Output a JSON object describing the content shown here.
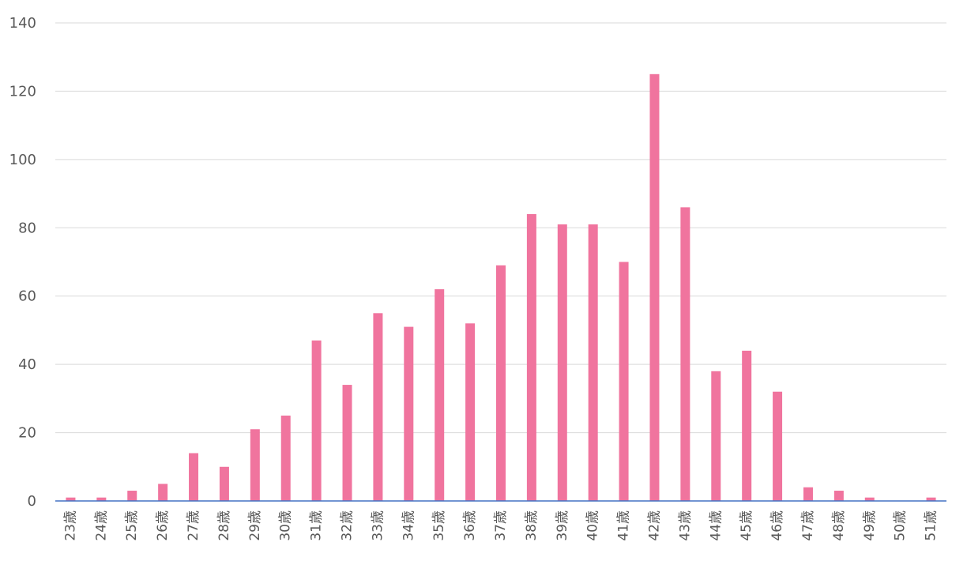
{
  "chart_data": {
    "type": "bar",
    "categories": [
      "23歳",
      "24歳",
      "25歳",
      "26歳",
      "27歳",
      "28歳",
      "29歳",
      "30歳",
      "31歳",
      "32歳",
      "33歳",
      "34歳",
      "35歳",
      "36歳",
      "37歳",
      "38歳",
      "39歳",
      "40歳",
      "41歳",
      "42歳",
      "43歳",
      "44歳",
      "45歳",
      "46歳",
      "47歳",
      "48歳",
      "49歳",
      "50歳",
      "51歳"
    ],
    "values": [
      1,
      1,
      3,
      5,
      14,
      10,
      21,
      25,
      47,
      34,
      55,
      51,
      62,
      52,
      69,
      84,
      81,
      81,
      70,
      125,
      86,
      38,
      44,
      32,
      4,
      3,
      1,
      0,
      1
    ],
    "title": "",
    "xlabel": "",
    "ylabel": "",
    "ylim": [
      0,
      140
    ],
    "yticks": [
      "0",
      "20",
      "40",
      "60",
      "80",
      "100",
      "120",
      "140"
    ],
    "grid": true,
    "legend": "none",
    "colors": {
      "bar": "#f0749e",
      "axis": "#4472c4",
      "grid": "#d9d9d9",
      "text": "#595959"
    }
  }
}
